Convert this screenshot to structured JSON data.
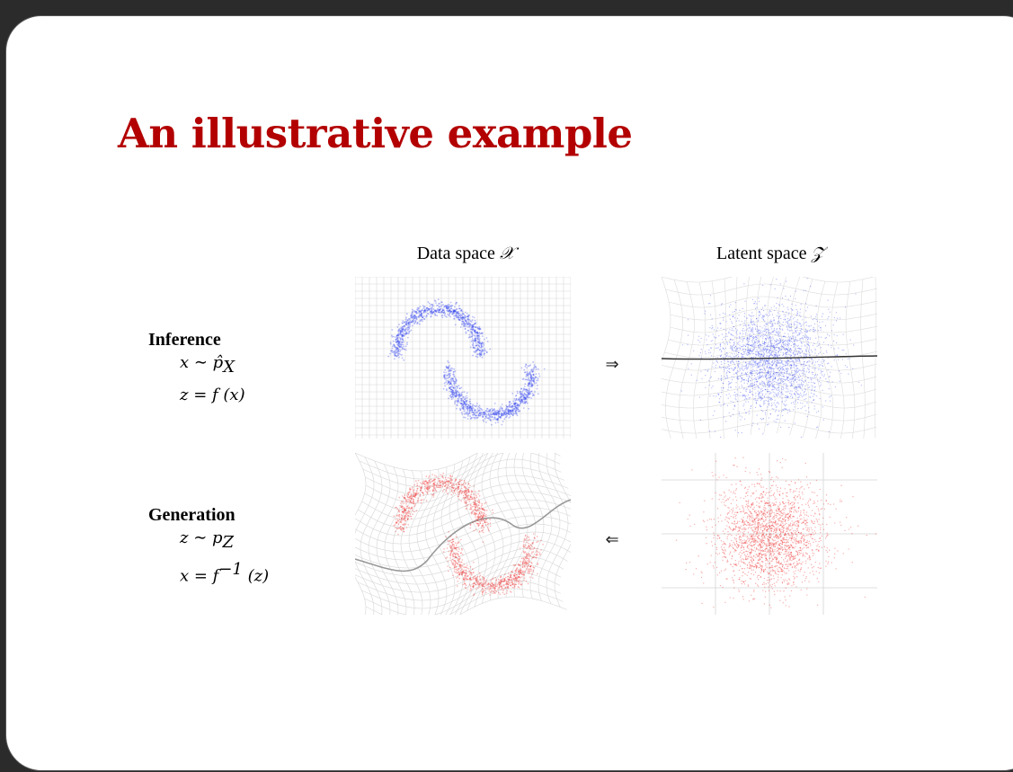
{
  "slide": {
    "title": "An illustrative example",
    "columns": [
      {
        "label": "Data space",
        "symbol": "𝒳"
      },
      {
        "label": "Latent space",
        "symbol": "𝒵"
      }
    ],
    "rows": [
      {
        "label": "Inference",
        "eq1": "x ∼ p̂",
        "eq1_sub": "X",
        "eq2": "z = f (x)",
        "arrow": "⇒"
      },
      {
        "label": "Generation",
        "eq1": "z ∼ p",
        "eq1_sub": "Z",
        "eq2": "x = f",
        "eq2_sup": "−1",
        "eq2_tail": " (z)",
        "arrow": "⇐"
      }
    ],
    "colors": {
      "title": "#b30000",
      "inference_points": "#3344ee",
      "generation_points": "#ee2222"
    }
  }
}
